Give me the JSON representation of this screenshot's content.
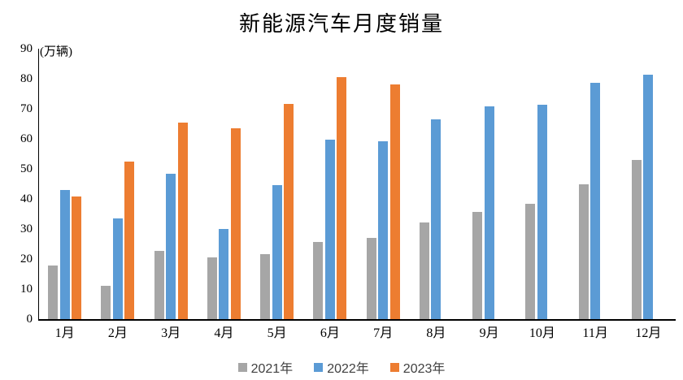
{
  "chart_data": {
    "type": "bar",
    "title": "新能源汽车月度销量",
    "y_axis_unit": "(万辆)",
    "categories": [
      "1月",
      "2月",
      "3月",
      "4月",
      "5月",
      "6月",
      "7月",
      "8月",
      "9月",
      "10月",
      "11月",
      "12月"
    ],
    "series": [
      {
        "name": "2021年",
        "color": "#A6A6A6",
        "values": [
          17.9,
          11.0,
          22.6,
          20.6,
          21.7,
          25.6,
          27.1,
          32.1,
          35.7,
          38.3,
          45.0,
          53.1
        ]
      },
      {
        "name": "2022年",
        "color": "#5B9BD5",
        "values": [
          43.1,
          33.4,
          48.4,
          29.9,
          44.7,
          59.6,
          59.3,
          66.6,
          70.8,
          71.4,
          78.6,
          81.4
        ]
      },
      {
        "name": "2023年",
        "color": "#ED7D31",
        "values": [
          40.8,
          52.5,
          65.3,
          63.6,
          71.7,
          80.6,
          78.0,
          null,
          null,
          null,
          null,
          null
        ]
      }
    ],
    "ylim": [
      0,
      90
    ],
    "ytick_step": 10,
    "ytick_labels": [
      "0",
      "10",
      "20",
      "30",
      "40",
      "50",
      "60",
      "70",
      "80",
      "90"
    ],
    "grid": false,
    "legend_position": "bottom",
    "axis_color": "#000000",
    "legend_text_color": "#404040"
  }
}
